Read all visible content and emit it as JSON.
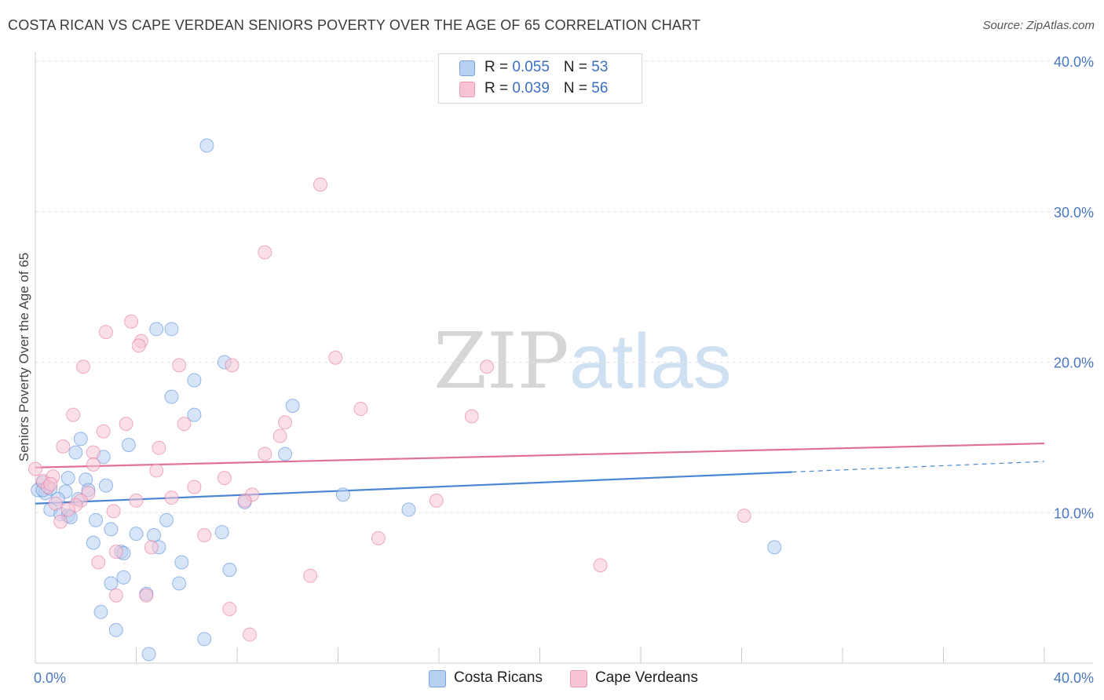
{
  "header": {
    "title": "COSTA RICAN VS CAPE VERDEAN SENIORS POVERTY OVER THE AGE OF 65 CORRELATION CHART",
    "source": "Source: ZipAtlas.com"
  },
  "watermark": {
    "zip": "ZIP",
    "atlas": "atlas"
  },
  "legend": {
    "rows": [
      {
        "r_label": "R = ",
        "r_value": "0.055",
        "n_label": "N = ",
        "n_value": "53",
        "color": "#b8d0f2"
      },
      {
        "r_label": "R = ",
        "r_value": "0.039",
        "n_label": "N = ",
        "n_value": "56",
        "color": "#f8c4d4"
      }
    ]
  },
  "bottom_legend": {
    "series": [
      {
        "label": "Costa Ricans",
        "color": "#b8d0f2"
      },
      {
        "label": "Cape Verdeans",
        "color": "#f8c4d4"
      }
    ]
  },
  "chart_data": {
    "type": "scatter",
    "title": "COSTA RICAN VS CAPE VERDEAN SENIORS POVERTY OVER THE AGE OF 65 CORRELATION CHART",
    "ylabel": "Seniors Poverty Over the Age of 65",
    "xlabel": "",
    "xlim": [
      0,
      40
    ],
    "ylim": [
      0,
      40
    ],
    "x_tick_labels": [
      "0.0%",
      "40.0%"
    ],
    "y_ticks": [
      10,
      20,
      30,
      40
    ],
    "y_tick_labels": [
      "10.0%",
      "20.0%",
      "30.0%",
      "40.0%"
    ],
    "grid": true,
    "legend_position": "top-center",
    "series": [
      {
        "name": "Costa Ricans",
        "color": "#4a86d4",
        "fill": "#b8d0f2",
        "trend": {
          "x0": 0,
          "y0": 10.6,
          "x1": 30,
          "y1": 12.7,
          "dash_to_x": 40,
          "dash_to_y": 13.4
        },
        "points": [
          [
            6.8,
            34.4
          ],
          [
            4.8,
            22.2
          ],
          [
            5.4,
            22.2
          ],
          [
            7.5,
            20.0
          ],
          [
            6.3,
            18.8
          ],
          [
            5.4,
            17.7
          ],
          [
            10.2,
            17.1
          ],
          [
            6.3,
            16.5
          ],
          [
            1.8,
            14.9
          ],
          [
            3.7,
            14.5
          ],
          [
            1.6,
            14.0
          ],
          [
            2.7,
            13.7
          ],
          [
            9.9,
            13.9
          ],
          [
            1.3,
            12.3
          ],
          [
            0.3,
            12.0
          ],
          [
            2.0,
            12.2
          ],
          [
            2.8,
            11.8
          ],
          [
            0.1,
            11.5
          ],
          [
            0.4,
            11.3
          ],
          [
            0.3,
            11.5
          ],
          [
            0.6,
            11.6
          ],
          [
            1.2,
            11.4
          ],
          [
            2.1,
            11.5
          ],
          [
            0.9,
            10.9
          ],
          [
            1.7,
            10.9
          ],
          [
            12.2,
            11.2
          ],
          [
            8.3,
            10.7
          ],
          [
            0.6,
            10.2
          ],
          [
            1.0,
            9.9
          ],
          [
            1.3,
            9.8
          ],
          [
            1.4,
            9.7
          ],
          [
            14.8,
            10.2
          ],
          [
            2.4,
            9.5
          ],
          [
            5.2,
            9.5
          ],
          [
            3.0,
            8.9
          ],
          [
            4.0,
            8.6
          ],
          [
            4.7,
            8.5
          ],
          [
            7.4,
            8.7
          ],
          [
            2.3,
            8.0
          ],
          [
            4.9,
            7.7
          ],
          [
            3.4,
            7.4
          ],
          [
            3.5,
            7.3
          ],
          [
            29.3,
            7.7
          ],
          [
            5.8,
            6.7
          ],
          [
            7.7,
            6.2
          ],
          [
            3.0,
            5.3
          ],
          [
            3.5,
            5.7
          ],
          [
            4.4,
            4.6
          ],
          [
            5.7,
            5.3
          ],
          [
            2.6,
            3.4
          ],
          [
            3.2,
            2.2
          ],
          [
            6.7,
            1.6
          ],
          [
            4.5,
            0.6
          ]
        ]
      },
      {
        "name": "Cape Verdeans",
        "color": "#e0709a",
        "fill": "#f8c4d4",
        "trend": {
          "x0": 0,
          "y0": 13.0,
          "x1": 40,
          "y1": 14.6
        },
        "points": [
          [
            11.3,
            31.8
          ],
          [
            9.1,
            27.3
          ],
          [
            3.8,
            22.7
          ],
          [
            2.8,
            22.0
          ],
          [
            4.2,
            21.4
          ],
          [
            4.1,
            21.1
          ],
          [
            11.9,
            20.3
          ],
          [
            1.9,
            19.7
          ],
          [
            5.7,
            19.8
          ],
          [
            7.8,
            19.8
          ],
          [
            17.9,
            19.7
          ],
          [
            12.9,
            16.9
          ],
          [
            1.5,
            16.5
          ],
          [
            17.3,
            16.4
          ],
          [
            3.6,
            15.9
          ],
          [
            5.9,
            15.9
          ],
          [
            9.9,
            16.0
          ],
          [
            2.7,
            15.4
          ],
          [
            9.7,
            15.1
          ],
          [
            1.1,
            14.4
          ],
          [
            4.9,
            14.3
          ],
          [
            2.3,
            14.0
          ],
          [
            9.1,
            13.9
          ],
          [
            2.3,
            13.2
          ],
          [
            4.8,
            12.8
          ],
          [
            0.0,
            12.9
          ],
          [
            0.3,
            12.1
          ],
          [
            7.5,
            12.3
          ],
          [
            0.7,
            12.4
          ],
          [
            6.3,
            11.7
          ],
          [
            0.5,
            11.7
          ],
          [
            8.6,
            11.2
          ],
          [
            2.1,
            11.3
          ],
          [
            5.4,
            11.0
          ],
          [
            1.8,
            10.8
          ],
          [
            4.0,
            10.8
          ],
          [
            8.3,
            10.8
          ],
          [
            15.9,
            10.8
          ],
          [
            1.6,
            10.5
          ],
          [
            0.8,
            10.6
          ],
          [
            1.3,
            10.2
          ],
          [
            3.1,
            10.1
          ],
          [
            1.0,
            9.4
          ],
          [
            28.1,
            9.8
          ],
          [
            6.7,
            8.5
          ],
          [
            13.6,
            8.3
          ],
          [
            4.6,
            7.7
          ],
          [
            3.2,
            7.4
          ],
          [
            2.5,
            6.7
          ],
          [
            22.4,
            6.5
          ],
          [
            10.9,
            5.8
          ],
          [
            3.2,
            4.5
          ],
          [
            4.4,
            4.5
          ],
          [
            7.7,
            3.6
          ],
          [
            8.5,
            1.9
          ],
          [
            0.6,
            11.9
          ]
        ]
      }
    ]
  }
}
